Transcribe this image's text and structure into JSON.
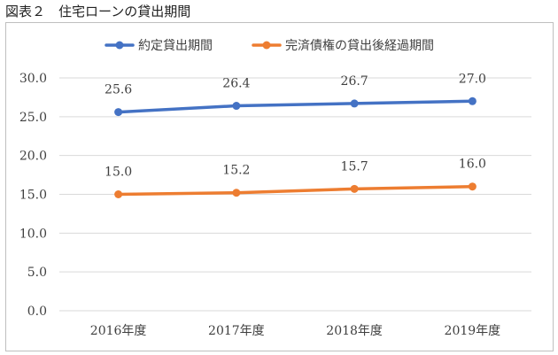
{
  "figure_title": "図表２　住宅ローンの貸出期間",
  "colors": {
    "series_1": "#4472c4",
    "series_2": "#ed7d31",
    "grid": "#d9d9d9",
    "text": "#404040"
  },
  "chart_data": {
    "type": "line",
    "categories": [
      "2016年度",
      "2017年度",
      "2018年度",
      "2019年度"
    ],
    "series": [
      {
        "name": "約定貸出期間",
        "values": [
          25.6,
          26.4,
          26.7,
          27.0
        ]
      },
      {
        "name": "完済債権の貸出後経過期間",
        "values": [
          15.0,
          15.2,
          15.7,
          16.0
        ]
      }
    ],
    "ylim": [
      0,
      30
    ],
    "yticks": [
      "0.0",
      "5.0",
      "10.0",
      "15.0",
      "20.0",
      "25.0",
      "30.0"
    ],
    "data_labels": [
      [
        "25.6",
        "26.4",
        "26.7",
        "27.0"
      ],
      [
        "15.0",
        "15.2",
        "15.7",
        "16.0"
      ]
    ],
    "legend": "top",
    "grid": true
  }
}
